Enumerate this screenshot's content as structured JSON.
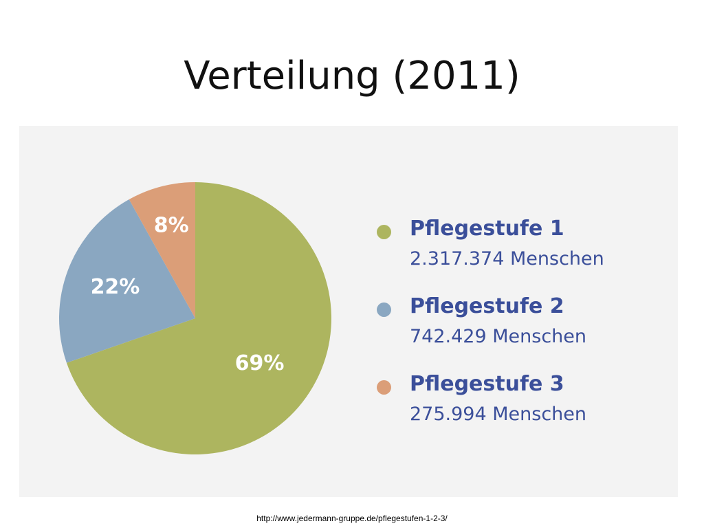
{
  "title": "Verteilung (2011)",
  "source": "http://www.jedermann-gruppe.de/pflegestufen-1-2-3/",
  "chart_data": {
    "type": "pie",
    "title": "",
    "categories": [
      "Pflegestufe 1",
      "Pflegestufe 2",
      "Pflegestufe 3"
    ],
    "values": [
      69,
      22,
      8
    ],
    "value_labels": [
      "69%",
      "22%",
      "8%"
    ],
    "counts": [
      "2.317.374 Menschen",
      "742.429 Menschen",
      "275.994 Menschen"
    ],
    "colors": [
      "#adb55f",
      "#8aa7c1",
      "#db9e78"
    ],
    "legend_placement": "right"
  },
  "legend": [
    {
      "name": "Pflegestufe 1",
      "count": "2.317.374 Menschen",
      "color": "#adb55f"
    },
    {
      "name": "Pflegestufe 2",
      "count": "742.429 Menschen",
      "color": "#8aa7c1"
    },
    {
      "name": "Pflegestufe 3",
      "count": "275.994 Menschen",
      "color": "#db9e78"
    }
  ]
}
